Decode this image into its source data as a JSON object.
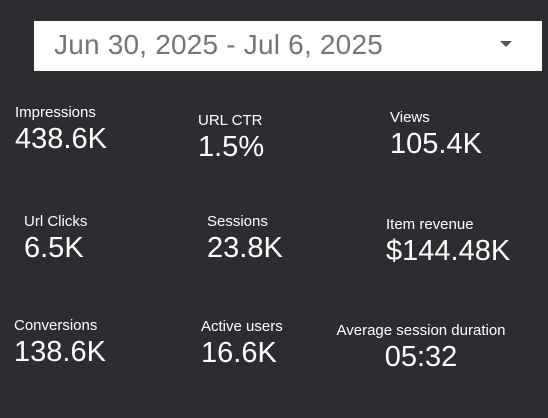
{
  "date_range": {
    "value": "Jun 30, 2025 - Jul 6, 2025",
    "icon": "chevron-down-icon"
  },
  "metrics": {
    "impressions": {
      "label": "Impressions",
      "value": "438.6K"
    },
    "url_ctr": {
      "label": "URL CTR",
      "value": "1.5%"
    },
    "views": {
      "label": "Views",
      "value": "105.4K"
    },
    "url_clicks": {
      "label": "Url Clicks",
      "value": "6.5K"
    },
    "sessions": {
      "label": "Sessions",
      "value": "23.8K"
    },
    "item_revenue": {
      "label": "Item revenue",
      "value": "$144.48K"
    },
    "conversions": {
      "label": "Conversions",
      "value": "138.6K"
    },
    "active_users": {
      "label": "Active users",
      "value": "16.6K"
    },
    "avg_session_duration": {
      "label": "Average session duration",
      "value": "05:32"
    }
  },
  "colors": {
    "background": "#2d2c30",
    "text": "#ffffff",
    "picker_background": "#ffffff",
    "picker_text": "#757575"
  }
}
